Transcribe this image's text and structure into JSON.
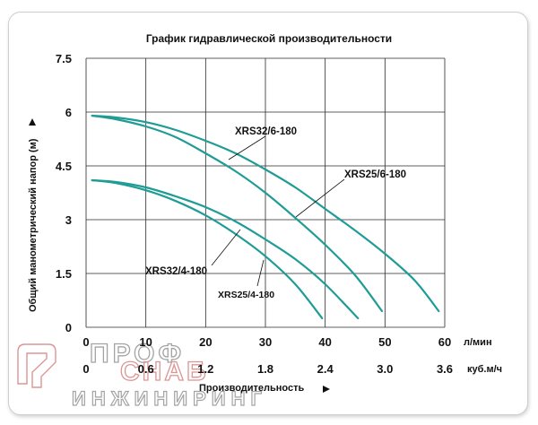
{
  "chart_data": {
    "type": "line",
    "title": "График гидравлической производительности",
    "ylabel": "Общий манометрический напор (м)",
    "xlabel": "Производительность",
    "x_unit": "л/мин",
    "x2_unit": "куб.м/ч",
    "ylim": [
      0,
      7.5
    ],
    "xlim": [
      0,
      60
    ],
    "y_ticks": [
      "0",
      "1.5",
      "3",
      "4.5",
      "6",
      "7.5"
    ],
    "x_ticks": [
      "0",
      "10",
      "20",
      "30",
      "40",
      "50",
      "60"
    ],
    "x2_ticks": [
      "0",
      "0.6",
      "1.2",
      "1.8",
      "2.4",
      "3.0",
      "3.6"
    ],
    "grid": true,
    "series": [
      {
        "name": "XRS32/6-180",
        "x": [
          1,
          5,
          10,
          15,
          20,
          25,
          30,
          35,
          40,
          45,
          50,
          55,
          59
        ],
        "y": [
          5.9,
          5.85,
          5.72,
          5.5,
          5.2,
          4.85,
          4.4,
          3.9,
          3.3,
          2.7,
          2.05,
          1.3,
          0.45
        ]
      },
      {
        "name": "XRS25/6-180",
        "x": [
          1,
          5,
          10,
          15,
          20,
          25,
          30,
          35,
          40,
          45,
          49.5
        ],
        "y": [
          5.9,
          5.8,
          5.6,
          5.3,
          4.85,
          4.35,
          3.75,
          3.05,
          2.3,
          1.45,
          0.45
        ]
      },
      {
        "name": "XRS32/4-180",
        "x": [
          1,
          5,
          10,
          15,
          20,
          25,
          30,
          35,
          40,
          45.5
        ],
        "y": [
          4.1,
          4.05,
          3.9,
          3.65,
          3.35,
          2.95,
          2.45,
          1.9,
          1.2,
          0.25
        ]
      },
      {
        "name": "XRS25/4-180",
        "x": [
          1,
          5,
          10,
          15,
          20,
          25,
          30,
          35,
          39.5
        ],
        "y": [
          4.1,
          4.02,
          3.82,
          3.52,
          3.12,
          2.6,
          1.98,
          1.2,
          0.25
        ]
      }
    ]
  },
  "watermark": {
    "line1": "ПРОФ",
    "line2": "СНАБ",
    "line3": "ИНЖИНИРИНГ"
  }
}
